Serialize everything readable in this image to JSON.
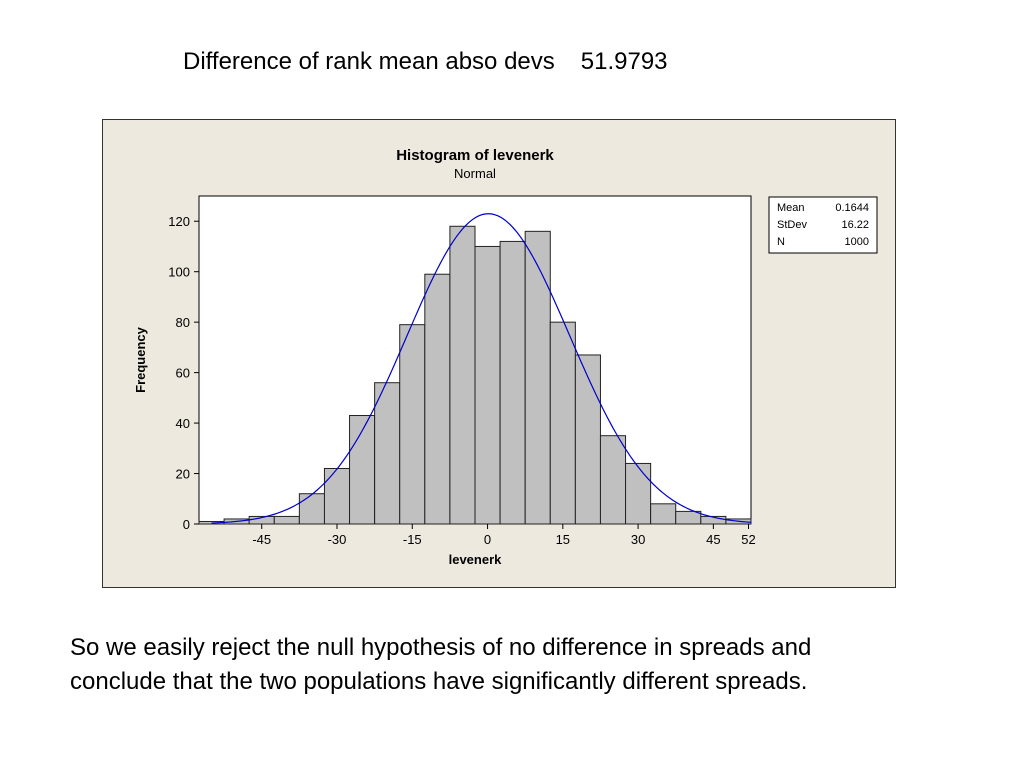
{
  "slide": {
    "title": "Difference of rank mean abso devs",
    "title_value": "51.9793",
    "conclusion_lines": [
      "So we easily reject the null hypothesis of no difference in spreads and",
      "conclude that the two populations have significantly different spreads."
    ]
  },
  "chart_data": {
    "type": "bar",
    "title": "Histogram of levenerk",
    "subtitle": "Normal",
    "xlabel": "levenerk",
    "ylabel": "Frequency",
    "xlim": [
      -57.5,
      52.5
    ],
    "ylim": [
      0,
      130
    ],
    "bin_width": 5,
    "bin_centers": [
      -55,
      -50,
      -45,
      -40,
      -35,
      -30,
      -25,
      -20,
      -15,
      -10,
      -5,
      0,
      5,
      10,
      15,
      20,
      25,
      30,
      35,
      40,
      45,
      50
    ],
    "values": [
      1,
      2,
      3,
      3,
      12,
      22,
      43,
      56,
      79,
      99,
      118,
      110,
      112,
      116,
      80,
      67,
      35,
      24,
      8,
      5,
      3,
      2
    ],
    "x_ticks": [
      -45,
      -30,
      -15,
      0,
      15,
      30,
      45,
      52
    ],
    "y_ticks": [
      0,
      20,
      40,
      60,
      80,
      100,
      120
    ],
    "fit": {
      "distribution": "Normal",
      "mean": 0.1644,
      "stdev": 16.22,
      "n": 1000
    },
    "stats_box": {
      "rows": [
        {
          "label": "Mean",
          "value": "0.1644"
        },
        {
          "label": "StDev",
          "value": "16.22"
        },
        {
          "label": "N",
          "value": "1000"
        }
      ]
    },
    "colors": {
      "bar_fill": "#c0c0c0",
      "bar_stroke": "#222222",
      "curve": "#0000cc",
      "panel_background": "#eee9df",
      "plot_background": "#ffffff"
    },
    "grid": false
  }
}
